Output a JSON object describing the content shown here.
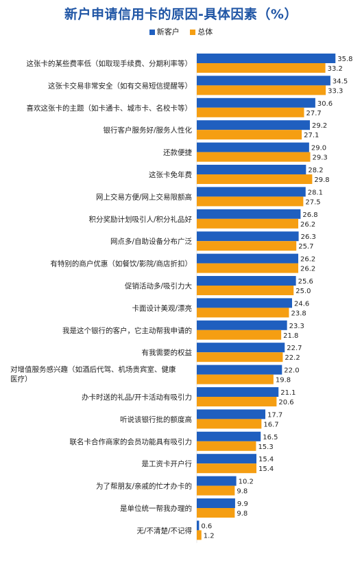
{
  "chart_data": {
    "type": "bar",
    "orientation": "horizontal",
    "title": "新户申请信用卡的原因-具体因素（%）",
    "colors": {
      "新客户": "#1f5fbf",
      "总体": "#f59e12"
    },
    "categories": [
      [
        "这张卡的某些费率低（如取现手续费、分期利率等）"
      ],
      [
        "这张卡交易非常安全（如有交易短信提醒等）"
      ],
      [
        "喜欢这张卡的主题（如卡通卡、城市卡、名校卡等）"
      ],
      [
        "银行客户服务好/服务人性化"
      ],
      [
        "还款便捷"
      ],
      [
        "这张卡免年费"
      ],
      [
        "网上交易方便/网上交易限额高"
      ],
      [
        "积分奖励计划吸引人/积分礼品好"
      ],
      [
        "网点多/自助设备分布广泛"
      ],
      [
        "有特别的商户优惠（如餐饮/影院/商店折扣）"
      ],
      [
        "促销活动多/吸引力大"
      ],
      [
        "卡面设计美观/漂亮"
      ],
      [
        "我是这个银行的客户，它主动帮我申请的"
      ],
      [
        "有我需要的权益"
      ],
      [
        "对增值服务感兴趣（如酒后代驾、机场贵宾室、健康",
        "医疗）"
      ],
      [
        "办卡时送的礼品/开卡活动有吸引力"
      ],
      [
        "听说该银行批的额度高"
      ],
      [
        "联名卡合作商家的会员功能具有吸引力"
      ],
      [
        "是工资卡开户行"
      ],
      [
        "为了帮朋友/亲戚的忙才办卡的"
      ],
      [
        "是单位统一帮我办理的"
      ],
      [
        "无/不清楚/不记得"
      ]
    ],
    "series": [
      {
        "name": "新客户",
        "values": [
          35.8,
          34.5,
          30.6,
          29.2,
          29.0,
          28.2,
          28.1,
          26.8,
          26.3,
          26.2,
          25.6,
          24.6,
          23.3,
          22.7,
          22.0,
          21.1,
          17.7,
          16.5,
          15.4,
          10.2,
          9.9,
          0.6
        ],
        "labels": [
          "35.8",
          "34.5",
          "30.6",
          "29.2",
          "29.0",
          "28.2",
          "28.1",
          "26.8",
          "26.3",
          "26.2",
          "25.6",
          "24.6",
          "23.3",
          "22.7",
          "22.0",
          "21.1",
          "17.7",
          "16.5",
          "15.4",
          "10.2",
          "9.9",
          "0.6"
        ]
      },
      {
        "name": "总体",
        "values": [
          33.2,
          33.3,
          27.7,
          27.1,
          29.3,
          29.8,
          27.5,
          26.2,
          25.7,
          26.2,
          25.0,
          23.8,
          21.8,
          22.2,
          19.8,
          20.6,
          16.7,
          15.3,
          15.4,
          9.8,
          9.8,
          1.2
        ],
        "labels": [
          "33.2",
          "33.3",
          "27.7",
          "27.1",
          "29.3",
          "29.8",
          "27.5",
          "26.2",
          "25.7",
          "26.2",
          "25.0",
          "23.8",
          "21.8",
          "22.2",
          "19.8",
          "20.6",
          "16.7",
          "15.3",
          "15.4",
          "9.8",
          "9.8",
          "1.2"
        ]
      }
    ],
    "xlim": [
      0,
      40
    ],
    "grid": false,
    "legend_position": "top-center"
  }
}
